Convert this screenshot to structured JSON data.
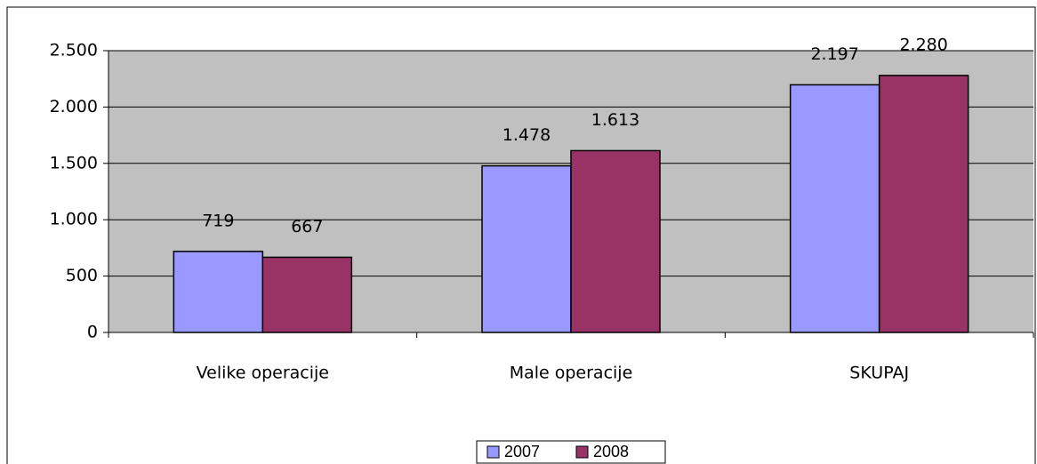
{
  "chart_data": {
    "type": "bar",
    "categories": [
      "Velike operacije",
      "Male operacije",
      "SKUPAJ"
    ],
    "series": [
      {
        "name": "2007",
        "color": "#9999ff",
        "values": [
          719,
          1478,
          2197
        ],
        "value_labels": [
          "719",
          "1.478",
          "2.197"
        ]
      },
      {
        "name": "2008",
        "color": "#993366",
        "values": [
          667,
          1613,
          2280
        ],
        "value_labels": [
          "667",
          "1.613",
          "2.280"
        ]
      }
    ],
    "ylim": [
      0,
      2500
    ],
    "yticks": [
      0,
      500,
      {
        "value": 1000,
        "label": "1.000"
      },
      {
        "value": 1500,
        "label": "1.500"
      },
      {
        "value": 2000,
        "label": "2.000"
      },
      {
        "value": 2500,
        "label": "2.500"
      }
    ],
    "grid": true,
    "legend": "bottom"
  }
}
